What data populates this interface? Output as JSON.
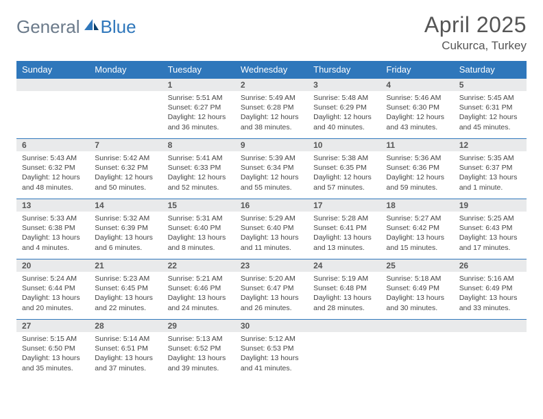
{
  "logo": {
    "general": "General",
    "blue": "Blue"
  },
  "title": "April 2025",
  "location": "Cukurca, Turkey",
  "colors": {
    "header_bg": "#2f77bb",
    "header_text": "#ffffff",
    "daynum_bg": "#e9eaeb",
    "rule": "#2f77bb",
    "body_text": "#444444",
    "title_text": "#555555"
  },
  "weekdays": [
    "Sunday",
    "Monday",
    "Tuesday",
    "Wednesday",
    "Thursday",
    "Friday",
    "Saturday"
  ],
  "weeks": [
    [
      null,
      null,
      {
        "n": "1",
        "sr": "Sunrise: 5:51 AM",
        "ss": "Sunset: 6:27 PM",
        "dl1": "Daylight: 12 hours",
        "dl2": "and 36 minutes."
      },
      {
        "n": "2",
        "sr": "Sunrise: 5:49 AM",
        "ss": "Sunset: 6:28 PM",
        "dl1": "Daylight: 12 hours",
        "dl2": "and 38 minutes."
      },
      {
        "n": "3",
        "sr": "Sunrise: 5:48 AM",
        "ss": "Sunset: 6:29 PM",
        "dl1": "Daylight: 12 hours",
        "dl2": "and 40 minutes."
      },
      {
        "n": "4",
        "sr": "Sunrise: 5:46 AM",
        "ss": "Sunset: 6:30 PM",
        "dl1": "Daylight: 12 hours",
        "dl2": "and 43 minutes."
      },
      {
        "n": "5",
        "sr": "Sunrise: 5:45 AM",
        "ss": "Sunset: 6:31 PM",
        "dl1": "Daylight: 12 hours",
        "dl2": "and 45 minutes."
      }
    ],
    [
      {
        "n": "6",
        "sr": "Sunrise: 5:43 AM",
        "ss": "Sunset: 6:32 PM",
        "dl1": "Daylight: 12 hours",
        "dl2": "and 48 minutes."
      },
      {
        "n": "7",
        "sr": "Sunrise: 5:42 AM",
        "ss": "Sunset: 6:32 PM",
        "dl1": "Daylight: 12 hours",
        "dl2": "and 50 minutes."
      },
      {
        "n": "8",
        "sr": "Sunrise: 5:41 AM",
        "ss": "Sunset: 6:33 PM",
        "dl1": "Daylight: 12 hours",
        "dl2": "and 52 minutes."
      },
      {
        "n": "9",
        "sr": "Sunrise: 5:39 AM",
        "ss": "Sunset: 6:34 PM",
        "dl1": "Daylight: 12 hours",
        "dl2": "and 55 minutes."
      },
      {
        "n": "10",
        "sr": "Sunrise: 5:38 AM",
        "ss": "Sunset: 6:35 PM",
        "dl1": "Daylight: 12 hours",
        "dl2": "and 57 minutes."
      },
      {
        "n": "11",
        "sr": "Sunrise: 5:36 AM",
        "ss": "Sunset: 6:36 PM",
        "dl1": "Daylight: 12 hours",
        "dl2": "and 59 minutes."
      },
      {
        "n": "12",
        "sr": "Sunrise: 5:35 AM",
        "ss": "Sunset: 6:37 PM",
        "dl1": "Daylight: 13 hours",
        "dl2": "and 1 minute."
      }
    ],
    [
      {
        "n": "13",
        "sr": "Sunrise: 5:33 AM",
        "ss": "Sunset: 6:38 PM",
        "dl1": "Daylight: 13 hours",
        "dl2": "and 4 minutes."
      },
      {
        "n": "14",
        "sr": "Sunrise: 5:32 AM",
        "ss": "Sunset: 6:39 PM",
        "dl1": "Daylight: 13 hours",
        "dl2": "and 6 minutes."
      },
      {
        "n": "15",
        "sr": "Sunrise: 5:31 AM",
        "ss": "Sunset: 6:40 PM",
        "dl1": "Daylight: 13 hours",
        "dl2": "and 8 minutes."
      },
      {
        "n": "16",
        "sr": "Sunrise: 5:29 AM",
        "ss": "Sunset: 6:40 PM",
        "dl1": "Daylight: 13 hours",
        "dl2": "and 11 minutes."
      },
      {
        "n": "17",
        "sr": "Sunrise: 5:28 AM",
        "ss": "Sunset: 6:41 PM",
        "dl1": "Daylight: 13 hours",
        "dl2": "and 13 minutes."
      },
      {
        "n": "18",
        "sr": "Sunrise: 5:27 AM",
        "ss": "Sunset: 6:42 PM",
        "dl1": "Daylight: 13 hours",
        "dl2": "and 15 minutes."
      },
      {
        "n": "19",
        "sr": "Sunrise: 5:25 AM",
        "ss": "Sunset: 6:43 PM",
        "dl1": "Daylight: 13 hours",
        "dl2": "and 17 minutes."
      }
    ],
    [
      {
        "n": "20",
        "sr": "Sunrise: 5:24 AM",
        "ss": "Sunset: 6:44 PM",
        "dl1": "Daylight: 13 hours",
        "dl2": "and 20 minutes."
      },
      {
        "n": "21",
        "sr": "Sunrise: 5:23 AM",
        "ss": "Sunset: 6:45 PM",
        "dl1": "Daylight: 13 hours",
        "dl2": "and 22 minutes."
      },
      {
        "n": "22",
        "sr": "Sunrise: 5:21 AM",
        "ss": "Sunset: 6:46 PM",
        "dl1": "Daylight: 13 hours",
        "dl2": "and 24 minutes."
      },
      {
        "n": "23",
        "sr": "Sunrise: 5:20 AM",
        "ss": "Sunset: 6:47 PM",
        "dl1": "Daylight: 13 hours",
        "dl2": "and 26 minutes."
      },
      {
        "n": "24",
        "sr": "Sunrise: 5:19 AM",
        "ss": "Sunset: 6:48 PM",
        "dl1": "Daylight: 13 hours",
        "dl2": "and 28 minutes."
      },
      {
        "n": "25",
        "sr": "Sunrise: 5:18 AM",
        "ss": "Sunset: 6:49 PM",
        "dl1": "Daylight: 13 hours",
        "dl2": "and 30 minutes."
      },
      {
        "n": "26",
        "sr": "Sunrise: 5:16 AM",
        "ss": "Sunset: 6:49 PM",
        "dl1": "Daylight: 13 hours",
        "dl2": "and 33 minutes."
      }
    ],
    [
      {
        "n": "27",
        "sr": "Sunrise: 5:15 AM",
        "ss": "Sunset: 6:50 PM",
        "dl1": "Daylight: 13 hours",
        "dl2": "and 35 minutes."
      },
      {
        "n": "28",
        "sr": "Sunrise: 5:14 AM",
        "ss": "Sunset: 6:51 PM",
        "dl1": "Daylight: 13 hours",
        "dl2": "and 37 minutes."
      },
      {
        "n": "29",
        "sr": "Sunrise: 5:13 AM",
        "ss": "Sunset: 6:52 PM",
        "dl1": "Daylight: 13 hours",
        "dl2": "and 39 minutes."
      },
      {
        "n": "30",
        "sr": "Sunrise: 5:12 AM",
        "ss": "Sunset: 6:53 PM",
        "dl1": "Daylight: 13 hours",
        "dl2": "and 41 minutes."
      },
      null,
      null,
      null
    ]
  ]
}
